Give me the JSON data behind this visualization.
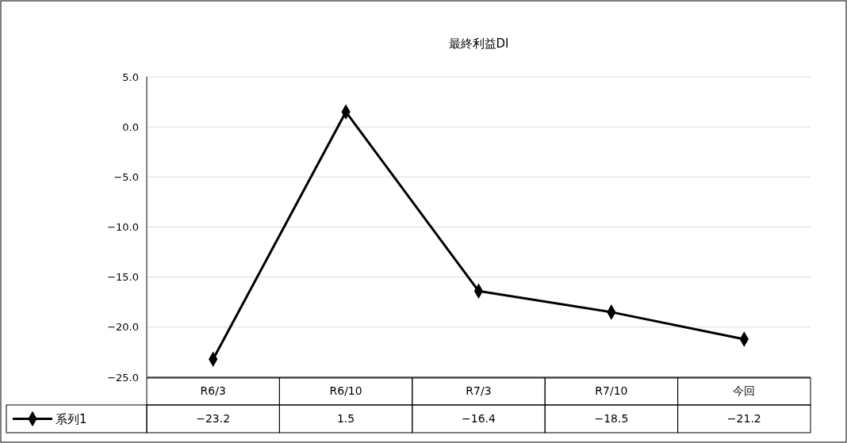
{
  "chart_data": {
    "type": "line",
    "title": "最終利益DI",
    "categories": [
      "R6/3",
      "R6/10",
      "R7/3",
      "R7/10",
      "今回"
    ],
    "series": [
      {
        "name": "系列1",
        "color": "#000000",
        "values": [
          -23.2,
          1.5,
          -16.4,
          -18.5,
          -21.2
        ],
        "value_labels": [
          "−23.2",
          "1.5",
          "−16.4",
          "−18.5",
          "−21.2"
        ]
      }
    ],
    "ylim": [
      -25,
      5
    ],
    "yticks": [
      {
        "value": -25,
        "label": "−25.0"
      },
      {
        "value": -20,
        "label": "−20.0"
      },
      {
        "value": -15,
        "label": "−15.0"
      },
      {
        "value": -10,
        "label": "−10.0"
      },
      {
        "value": -5,
        "label": "−5.0"
      },
      {
        "value": 0,
        "label": "0.0"
      },
      {
        "value": 5,
        "label": "5.0"
      }
    ],
    "grid": "y",
    "marker": "diamond",
    "line_style": "solid",
    "legend": "bottom"
  }
}
